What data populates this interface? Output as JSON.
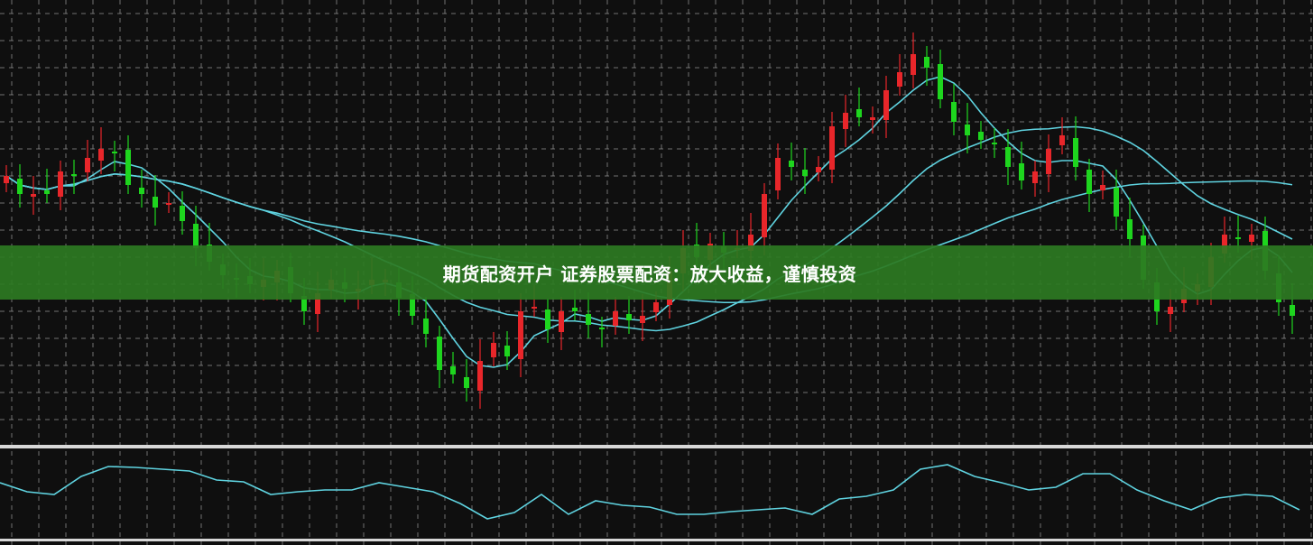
{
  "banner": {
    "text": "期货配资开户 证券股票配资：放大收益，谨慎投资"
  },
  "colors": {
    "background": "#0f0f0f",
    "grid": "#9a9a9a",
    "up": "#e8262a",
    "down": "#1ed51e",
    "ma": "#5fd3e0",
    "oscillator": "#5fd3e0",
    "separator": "#d8d8d8",
    "banner": "#2c7a22"
  },
  "chart_data": [
    {
      "type": "candlestick",
      "title": "",
      "grid": true,
      "moving_averages": [
        5,
        20,
        40
      ],
      "closes": [
        30.5,
        28.5,
        28.5,
        28.5,
        31,
        30.5,
        32.5,
        33.5,
        33,
        29.5,
        28.5,
        27,
        27.5,
        25.5,
        22.5,
        21,
        19.5,
        19,
        18.5,
        19,
        20,
        17.5,
        15.5,
        17.5,
        19,
        18,
        18,
        19,
        19,
        17,
        15,
        13,
        9,
        8.5,
        7,
        10,
        12,
        10.5,
        15.5,
        16,
        13.5,
        15.5,
        15.5,
        14,
        13.5,
        15.5,
        14.5,
        15,
        16.5,
        20,
        22.5,
        21.5,
        23,
        22,
        22.5,
        24,
        28.5,
        32.5,
        31.5,
        30.5,
        31.5,
        36,
        37.5,
        37,
        37,
        40,
        42,
        44,
        42.5,
        39,
        36.5,
        35,
        34.5,
        34,
        31.5,
        30,
        31,
        33.5,
        35,
        31.5,
        28.5,
        29.5,
        26,
        23.5,
        19,
        15.5,
        16,
        18,
        18.5,
        21.5,
        24,
        23.5,
        24,
        20,
        16.5,
        15
      ]
    },
    {
      "type": "line",
      "title": "",
      "grid": true,
      "values": [
        65,
        55,
        52,
        72,
        83,
        82,
        80,
        78,
        68,
        66,
        52,
        55,
        57,
        57,
        65,
        60,
        55,
        42,
        25,
        32,
        52,
        30,
        45,
        40,
        38,
        30,
        30,
        33,
        35,
        37,
        30,
        47,
        50,
        57,
        80,
        85,
        72,
        65,
        57,
        60,
        75,
        75,
        57,
        45,
        35,
        48,
        52,
        50,
        35
      ]
    }
  ]
}
